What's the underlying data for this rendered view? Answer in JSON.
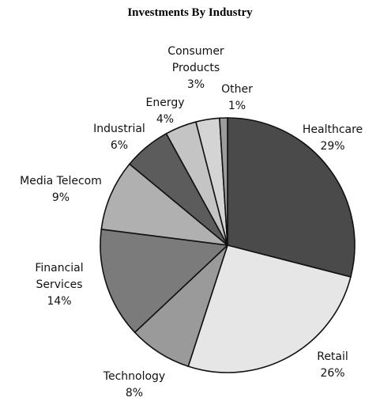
{
  "chart_data": {
    "type": "pie",
    "title": "Investments By Industry",
    "slices": [
      {
        "label": "Healthcare",
        "value": 29,
        "pct_label": "29%",
        "color": "#4a4a4a"
      },
      {
        "label": "Retail",
        "value": 26,
        "pct_label": "26%",
        "color": "#e6e6e6"
      },
      {
        "label": "Technology",
        "value": 8,
        "pct_label": "8%",
        "color": "#9a9a9a"
      },
      {
        "label": "Financial Services",
        "value": 14,
        "pct_label": "14%",
        "color": "#7b7b7b"
      },
      {
        "label": "Media Telecom",
        "value": 9,
        "pct_label": "9%",
        "color": "#b0b0b0"
      },
      {
        "label": "Industrial",
        "value": 6,
        "pct_label": "6%",
        "color": "#5c5c5c"
      },
      {
        "label": "Energy",
        "value": 4,
        "pct_label": "4%",
        "color": "#c4c4c4"
      },
      {
        "label": "Consumer Products",
        "value": 3,
        "pct_label": "3%",
        "color": "#d4d4d4"
      },
      {
        "label": "Other",
        "value": 1,
        "pct_label": "1%",
        "color": "#9c9c9c"
      }
    ]
  }
}
